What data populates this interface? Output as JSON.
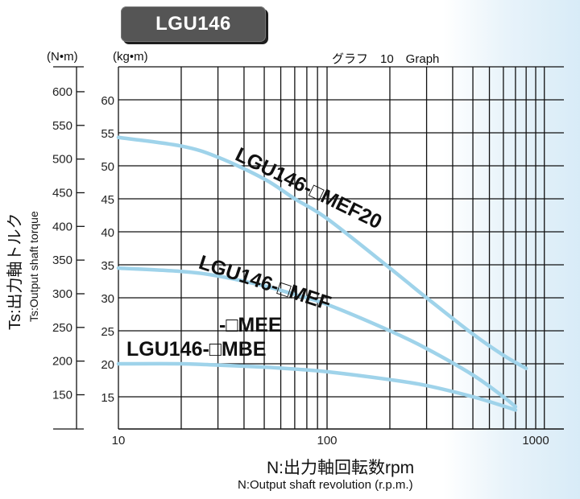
{
  "title": "LGU146",
  "graph_caption": "グラフ　10　Graph",
  "units": {
    "left": "(N•m)",
    "right": "(kg•m)"
  },
  "y_axis": {
    "label_main": "Ts:出力軸トルク",
    "label_sub": "Ts:Output shaft torque"
  },
  "x_axis": {
    "label_main": "N:出力軸回転数rpm",
    "label_sub": "N:Output shaft revolution (r.p.m.)"
  },
  "series_labels": {
    "mef20": "LGU146-□MEF20",
    "mef": "LGU146-□MEF",
    "mee": "-□MEE",
    "mbe": "LGU146-□MBE"
  },
  "colors": {
    "curve": "#9fd3ea",
    "badge": "#555555",
    "grid": "#111111"
  },
  "chart_data": {
    "type": "line",
    "title": "LGU146 — グラフ 10 Graph",
    "xlabel": "N:出力軸回転数rpm / N:Output shaft revolution (r.p.m.)",
    "ylabel": "Ts:出力軸トルク / Ts:Output shaft torque",
    "xscale": "log",
    "xlim": [
      10,
      1000
    ],
    "x_ticks": [
      10,
      100,
      1000
    ],
    "ylim_kgm": [
      10,
      65
    ],
    "y_ticks_kgm": [
      15,
      20,
      25,
      30,
      35,
      40,
      45,
      50,
      55,
      60
    ],
    "y_ticks_Nm": [
      150,
      200,
      250,
      300,
      350,
      400,
      450,
      500,
      550,
      600
    ],
    "grid": true,
    "legend": "inline labels on curves",
    "series": [
      {
        "name": "LGU146-□MEF20",
        "unit": "kg·m",
        "x": [
          10,
          20,
          30,
          50,
          70,
          100,
          200,
          300,
          500,
          700,
          900
        ],
        "y": [
          54.3,
          53.0,
          51.3,
          48.0,
          45.0,
          42.0,
          34.5,
          30.0,
          24.5,
          21.3,
          19.3
        ]
      },
      {
        "name": "LGU146-□MEF",
        "unit": "kg·m",
        "x": [
          10,
          20,
          30,
          50,
          70,
          100,
          200,
          300,
          500,
          700,
          800
        ],
        "y": [
          34.5,
          34.0,
          33.3,
          31.8,
          30.5,
          29.0,
          25.0,
          22.3,
          18.3,
          15.0,
          13.5
        ]
      },
      {
        "name": "LGU146-□MEE / LGU146-□MBE",
        "unit": "kg·m",
        "x": [
          10,
          20,
          30,
          50,
          70,
          100,
          200,
          300,
          500,
          700,
          800
        ],
        "y": [
          20.0,
          20.0,
          19.8,
          19.5,
          19.2,
          18.8,
          17.6,
          16.7,
          15.0,
          13.6,
          13.0
        ]
      }
    ]
  }
}
